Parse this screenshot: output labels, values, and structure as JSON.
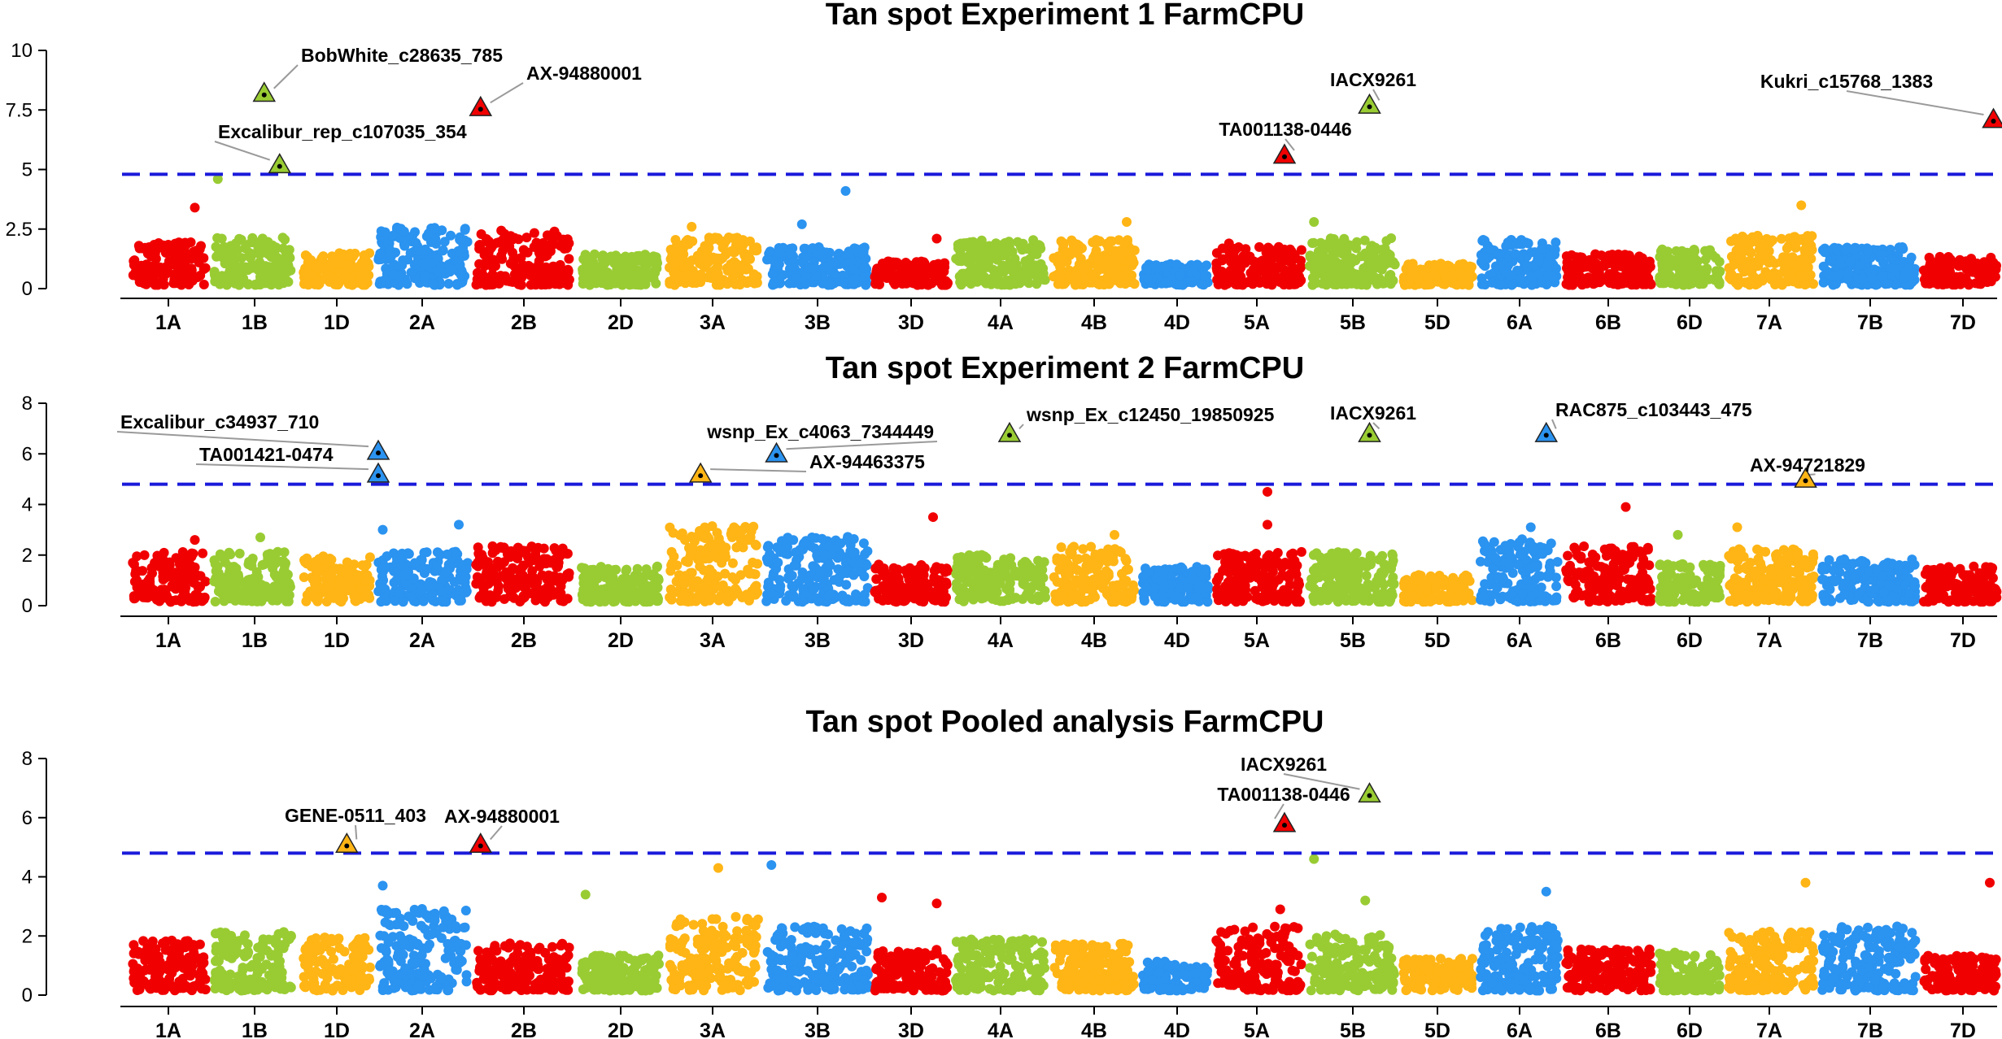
{
  "colors": {
    "red": "#f00000",
    "green": "#99cc33",
    "orange": "#ffb515",
    "blue": "#2b93f0",
    "threshold": "#1a1adb",
    "leader": "#9a9a9a"
  },
  "chromosomes": [
    "1A",
    "1B",
    "1D",
    "2A",
    "2B",
    "2D",
    "3A",
    "3B",
    "3D",
    "4A",
    "4B",
    "4D",
    "5A",
    "5B",
    "5D",
    "6A",
    "6B",
    "6D",
    "7A",
    "7B",
    "7D"
  ],
  "chart_data": [
    {
      "type": "scatter",
      "title": "Tan spot Experiment 1 FarmCPU",
      "xlabel": "",
      "ylabel": "",
      "ylim": [
        0,
        10
      ],
      "yticks": [
        "0",
        "2.5",
        "5",
        "7.5",
        "10"
      ],
      "ytick_values": [
        0,
        2.5,
        5,
        7.5,
        10
      ],
      "threshold": 4.8,
      "base_heights": [
        1.8,
        2.0,
        1.4,
        2.5,
        2.3,
        1.3,
        2.0,
        1.6,
        1.0,
        1.9,
        1.9,
        0.9,
        1.6,
        2.0,
        0.9,
        1.9,
        1.3,
        1.5,
        2.1,
        1.6,
        1.2
      ],
      "outliers": [
        {
          "chromosome": "1A",
          "position": 0.85,
          "value": 3.4
        },
        {
          "chromosome": "1B",
          "position": 0.05,
          "value": 4.6
        },
        {
          "chromosome": "3A",
          "position": 0.25,
          "value": 2.6
        },
        {
          "chromosome": "3B",
          "position": 0.35,
          "value": 2.7
        },
        {
          "chromosome": "3B",
          "position": 0.78,
          "value": 4.1
        },
        {
          "chromosome": "3D",
          "position": 0.85,
          "value": 2.1
        },
        {
          "chromosome": "4B",
          "position": 0.9,
          "value": 2.8
        },
        {
          "chromosome": "5A",
          "position": 0.15,
          "value": 1.9
        },
        {
          "chromosome": "5B",
          "position": 0.05,
          "value": 2.8
        },
        {
          "chromosome": "7A",
          "position": 0.85,
          "value": 3.5
        }
      ],
      "significant_markers": [
        {
          "label": "BobWhite_c28635_785",
          "chromosome": "1B",
          "position": 0.65,
          "value": 8.2,
          "color": "green"
        },
        {
          "label": "AX-94880001",
          "chromosome": "2B",
          "position": 0.05,
          "value": 7.6,
          "color": "red"
        },
        {
          "label": "Excalibur_rep_c107035_354",
          "chromosome": "1B",
          "position": 0.85,
          "value": 5.2,
          "color": "green"
        },
        {
          "label": "IACX9261",
          "chromosome": "5B",
          "position": 0.7,
          "value": 7.7,
          "color": "green"
        },
        {
          "label": "TA001138-0446",
          "chromosome": "5A",
          "position": 0.8,
          "value": 5.6,
          "color": "red"
        },
        {
          "label": "Kukri_c15768_1383",
          "chromosome": "7D",
          "position": 0.95,
          "value": 7.1,
          "color": "red"
        }
      ]
    },
    {
      "type": "scatter",
      "title": "Tan spot Experiment 2 FarmCPU",
      "xlabel": "",
      "ylabel": "",
      "ylim": [
        0,
        8
      ],
      "yticks": [
        "0",
        "2",
        "4",
        "6",
        "8"
      ],
      "ytick_values": [
        0,
        2,
        4,
        6,
        8
      ],
      "threshold": 4.8,
      "base_heights": [
        2.0,
        2.0,
        1.8,
        2.0,
        2.2,
        1.4,
        3.0,
        2.6,
        1.5,
        1.9,
        2.2,
        1.4,
        2.0,
        2.0,
        1.1,
        2.5,
        2.2,
        1.5,
        2.1,
        1.7,
        1.4
      ],
      "outliers": [
        {
          "chromosome": "1A",
          "position": 0.85,
          "value": 2.6
        },
        {
          "chromosome": "1B",
          "position": 0.6,
          "value": 2.7
        },
        {
          "chromosome": "2A",
          "position": 0.05,
          "value": 3.0
        },
        {
          "chromosome": "2A",
          "position": 0.9,
          "value": 3.2
        },
        {
          "chromosome": "3D",
          "position": 0.8,
          "value": 3.5
        },
        {
          "chromosome": "4B",
          "position": 0.75,
          "value": 2.8
        },
        {
          "chromosome": "5A",
          "position": 0.6,
          "value": 4.5
        },
        {
          "chromosome": "5A",
          "position": 0.6,
          "value": 3.2
        },
        {
          "chromosome": "6A",
          "position": 0.65,
          "value": 3.1
        },
        {
          "chromosome": "6B",
          "position": 0.7,
          "value": 3.9
        },
        {
          "chromosome": "6D",
          "position": 0.3,
          "value": 2.8
        },
        {
          "chromosome": "7A",
          "position": 0.1,
          "value": 3.1
        }
      ],
      "significant_markers": [
        {
          "label": "Excalibur_c34937_710",
          "chromosome": "2A",
          "position": 0.0,
          "value": 6.1,
          "color": "blue"
        },
        {
          "label": "TA001421-0474",
          "chromosome": "2A",
          "position": 0.0,
          "value": 5.2,
          "color": "blue"
        },
        {
          "label": "wsnp_Ex_c4063_7344449",
          "chromosome": "3B",
          "position": 0.1,
          "value": 6.0,
          "color": "blue"
        },
        {
          "label": "AX-94463375",
          "chromosome": "3A",
          "position": 0.35,
          "value": 5.2,
          "color": "orange"
        },
        {
          "label": "wsnp_Ex_c12450_19850925",
          "chromosome": "4A",
          "position": 0.6,
          "value": 6.8,
          "color": "green"
        },
        {
          "label": "IACX9261",
          "chromosome": "5B",
          "position": 0.7,
          "value": 6.8,
          "color": "green"
        },
        {
          "label": "RAC875_c103443_475",
          "chromosome": "6A",
          "position": 0.85,
          "value": 6.8,
          "color": "blue"
        },
        {
          "label": "AX-94721829",
          "chromosome": "7A",
          "position": 0.9,
          "value": 5.0,
          "color": "orange"
        }
      ]
    },
    {
      "type": "scatter",
      "title": "Tan spot Pooled analysis FarmCPU",
      "xlabel": "",
      "ylabel": "",
      "ylim": [
        0,
        8
      ],
      "yticks": [
        "0",
        "2",
        "4",
        "6",
        "8"
      ],
      "ytick_values": [
        0,
        2,
        4,
        6,
        8
      ],
      "threshold": 4.8,
      "base_heights": [
        1.7,
        2.0,
        1.8,
        2.8,
        1.6,
        1.2,
        2.5,
        2.2,
        1.4,
        1.8,
        1.6,
        1.0,
        2.2,
        1.9,
        1.1,
        2.2,
        1.4,
        1.3,
        2.0,
        2.2,
        1.2
      ],
      "outliers": [
        {
          "chromosome": "2A",
          "position": 0.05,
          "value": 3.7
        },
        {
          "chromosome": "2D",
          "position": 0.05,
          "value": 3.4
        },
        {
          "chromosome": "3A",
          "position": 0.55,
          "value": 4.3
        },
        {
          "chromosome": "3B",
          "position": 0.05,
          "value": 4.4
        },
        {
          "chromosome": "3D",
          "position": 0.1,
          "value": 3.3
        },
        {
          "chromosome": "3D",
          "position": 0.85,
          "value": 3.1
        },
        {
          "chromosome": "5A",
          "position": 0.75,
          "value": 2.9
        },
        {
          "chromosome": "5B",
          "position": 0.05,
          "value": 4.6
        },
        {
          "chromosome": "5B",
          "position": 0.65,
          "value": 3.2
        },
        {
          "chromosome": "6A",
          "position": 0.85,
          "value": 3.5
        },
        {
          "chromosome": "7A",
          "position": 0.9,
          "value": 3.8
        },
        {
          "chromosome": "7D",
          "position": 0.9,
          "value": 3.8
        }
      ],
      "significant_markers": [
        {
          "label": "GENE-0511_403",
          "chromosome": "1D",
          "position": 0.65,
          "value": 5.1,
          "color": "orange"
        },
        {
          "label": "AX-94880001",
          "chromosome": "2B",
          "position": 0.05,
          "value": 5.1,
          "color": "red"
        },
        {
          "label": "IACX9261",
          "chromosome": "5B",
          "position": 0.7,
          "value": 6.8,
          "color": "green"
        },
        {
          "label": "TA001138-0446",
          "chromosome": "5A",
          "position": 0.8,
          "value": 5.8,
          "color": "red"
        }
      ]
    }
  ]
}
